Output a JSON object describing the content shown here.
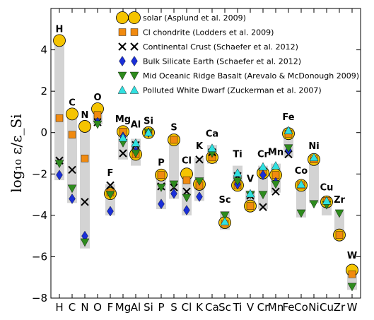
{
  "chart_data": {
    "type": "scatter",
    "ylabel": "log₁₀ ε/ε_Si",
    "ylim": [
      -8,
      6
    ],
    "yticks": [
      -8,
      -6,
      -4,
      -2,
      0,
      2,
      4
    ],
    "categories": [
      "H",
      "C",
      "N",
      "O",
      "F",
      "Mg",
      "Al",
      "Si",
      "P",
      "S",
      "Cl",
      "K",
      "Ca",
      "Sc",
      "Ti",
      "V",
      "Cr",
      "Mn",
      "Fe",
      "Co",
      "Ni",
      "Cu",
      "Zr",
      "W"
    ],
    "ranges": [
      {
        "element": "H",
        "low": -2.3,
        "high": 4.4
      },
      {
        "element": "C",
        "low": -3.4,
        "high": 0.9
      },
      {
        "element": "N",
        "low": -5.6,
        "high": 0.3
      },
      {
        "element": "O",
        "low": 0.4,
        "high": 1.1
      },
      {
        "element": "F",
        "low": -4.0,
        "high": -2.5
      },
      {
        "element": "Mg",
        "low": -1.3,
        "high": 0.1
      },
      {
        "element": "Al",
        "low": -1.6,
        "high": -0.3
      },
      {
        "element": "Si",
        "low": -0.2,
        "high": 0.1
      },
      {
        "element": "P",
        "low": -3.7,
        "high": -2.0
      },
      {
        "element": "S",
        "low": -3.2,
        "high": -0.3
      },
      {
        "element": "Cl",
        "low": -4.0,
        "high": -1.9
      },
      {
        "element": "K",
        "low": -3.3,
        "high": -1.2
      },
      {
        "element": "Ca",
        "low": -1.5,
        "high": -0.6
      },
      {
        "element": "Sc",
        "low": -4.7,
        "high": -3.8
      },
      {
        "element": "Ti",
        "low": -2.7,
        "high": -1.6
      },
      {
        "element": "V",
        "low": -3.7,
        "high": -2.8
      },
      {
        "element": "Cr",
        "low": -3.7,
        "high": -1.6
      },
      {
        "element": "Mn",
        "low": -2.9,
        "high": -1.5
      },
      {
        "element": "Fe",
        "low": -1.2,
        "high": 0.2
      },
      {
        "element": "Co",
        "low": -4.1,
        "high": -2.4
      },
      {
        "element": "Ni",
        "low": -3.4,
        "high": -1.2
      },
      {
        "element": "Cu",
        "low": -4.0,
        "high": -3.2
      },
      {
        "element": "Zr",
        "low": -5.1,
        "high": -3.8
      },
      {
        "element": "W",
        "low": -7.6,
        "high": -6.5
      }
    ],
    "series": [
      {
        "name": "solar (Asplund et al. 2009)",
        "marker": "circle",
        "color": "#f5c400",
        "points": [
          [
            "H",
            4.45
          ],
          [
            "C",
            0.9
          ],
          [
            "N",
            0.3
          ],
          [
            "O",
            1.15
          ],
          [
            "F",
            -2.95
          ],
          [
            "Mg",
            0.05
          ],
          [
            "Al",
            -1.05
          ],
          [
            "Si",
            0.0
          ],
          [
            "P",
            -2.05
          ],
          [
            "S",
            -0.35
          ],
          [
            "Cl",
            -2.0
          ],
          [
            "K",
            -2.5
          ],
          [
            "Ca",
            -1.2
          ],
          [
            "Sc",
            -4.35
          ],
          [
            "Ti",
            -2.55
          ],
          [
            "V",
            -3.55
          ],
          [
            "Cr",
            -1.95
          ],
          [
            "Mn",
            -2.05
          ],
          [
            "Fe",
            -0.05
          ],
          [
            "Co",
            -2.55
          ],
          [
            "Ni",
            -1.3
          ],
          [
            "Cu",
            -3.35
          ],
          [
            "Zr",
            -4.95
          ],
          [
            "W",
            -6.65
          ]
        ]
      },
      {
        "name": "CI chondrite (Lodders et al. 2009)",
        "marker": "square",
        "color": "#f08a10",
        "points": [
          [
            "H",
            0.7
          ],
          [
            "C",
            -0.1
          ],
          [
            "N",
            -1.25
          ],
          [
            "O",
            0.85
          ],
          [
            "F",
            -2.9
          ],
          [
            "Mg",
            0.05
          ],
          [
            "Al",
            -1.05
          ],
          [
            "Si",
            0.0
          ],
          [
            "P",
            -2.05
          ],
          [
            "S",
            -0.35
          ],
          [
            "Cl",
            -2.3
          ],
          [
            "K",
            -2.55
          ],
          [
            "Ca",
            -1.2
          ],
          [
            "Sc",
            -4.4
          ],
          [
            "Ti",
            -2.55
          ],
          [
            "V",
            -3.55
          ],
          [
            "Cr",
            -1.9
          ],
          [
            "Mn",
            -2.05
          ],
          [
            "Fe",
            -0.05
          ],
          [
            "Co",
            -2.55
          ],
          [
            "Ni",
            -1.3
          ],
          [
            "Cu",
            -3.3
          ],
          [
            "Zr",
            -4.95
          ],
          [
            "W",
            -6.85
          ]
        ]
      },
      {
        "name": "Continental Crust (Schaefer et al. 2012)",
        "marker": "x",
        "color": "#000000",
        "points": [
          [
            "H",
            -1.35
          ],
          [
            "C",
            -1.8
          ],
          [
            "N",
            -3.35
          ],
          [
            "O",
            0.5
          ],
          [
            "F",
            -2.55
          ],
          [
            "Mg",
            -1.0
          ],
          [
            "Al",
            -0.6
          ],
          [
            "Si",
            0.0
          ],
          [
            "P",
            -2.6
          ],
          [
            "S",
            -2.65
          ],
          [
            "Cl",
            -2.85
          ],
          [
            "K",
            -1.3
          ],
          [
            "Ca",
            -0.95
          ],
          [
            "Ti",
            -2.1
          ],
          [
            "V",
            -3.05
          ],
          [
            "Cr",
            -3.6
          ],
          [
            "Mn",
            -2.85
          ],
          [
            "Fe",
            -1.05
          ]
        ]
      },
      {
        "name": "Bulk Silicate Earth (Schaefer et al. 2012)",
        "marker": "diamond",
        "color": "#1a2fd8",
        "points": [
          [
            "H",
            -2.05
          ],
          [
            "C",
            -3.2
          ],
          [
            "N",
            -5.0
          ],
          [
            "O",
            0.5
          ],
          [
            "F",
            -3.8
          ],
          [
            "Mg",
            -0.2
          ],
          [
            "Al",
            -0.9
          ],
          [
            "Si",
            0.0
          ],
          [
            "P",
            -3.45
          ],
          [
            "S",
            -2.95
          ],
          [
            "Cl",
            -3.75
          ],
          [
            "K",
            -3.1
          ],
          [
            "Ca",
            -0.85
          ],
          [
            "Ti",
            -2.5
          ],
          [
            "Cr",
            -2.05
          ],
          [
            "Mn",
            -2.4
          ],
          [
            "Fe",
            -0.85
          ]
        ]
      },
      {
        "name": "Mid Oceanic Ridge Basalt (Arevalo & McDonough 2009)",
        "marker": "triangle-down",
        "color": "#2e8b1e",
        "points": [
          [
            "H",
            -1.5
          ],
          [
            "C",
            -2.7
          ],
          [
            "N",
            -5.3
          ],
          [
            "O",
            0.4
          ],
          [
            "F",
            -3.0
          ],
          [
            "Mg",
            -0.5
          ],
          [
            "Al",
            -1.0
          ],
          [
            "Si",
            0.0
          ],
          [
            "P",
            -2.65
          ],
          [
            "S",
            -2.5
          ],
          [
            "Cl",
            -3.15
          ],
          [
            "K",
            -2.35
          ],
          [
            "Ca",
            -1.0
          ],
          [
            "Sc",
            -4.0
          ],
          [
            "Ti",
            -2.35
          ],
          [
            "V",
            -3.0
          ],
          [
            "Cr",
            -3.0
          ],
          [
            "Mn",
            -2.5
          ],
          [
            "Fe",
            -0.75
          ],
          [
            "Co",
            -3.9
          ],
          [
            "Ni",
            -3.45
          ],
          [
            "Cu",
            -3.5
          ],
          [
            "Zr",
            -3.9
          ],
          [
            "W",
            -7.45
          ]
        ]
      },
      {
        "name": "Polluted White Dwarf (Zuckerman et al. 2007)",
        "marker": "triangle-up",
        "color": "#30e0e0",
        "points": [
          [
            "Mg",
            -0.25
          ],
          [
            "Al",
            -0.5
          ],
          [
            "Si",
            0.0
          ],
          [
            "Ca",
            -0.75
          ],
          [
            "Sc",
            -4.3
          ],
          [
            "Ti",
            -1.95
          ],
          [
            "V",
            -2.95
          ],
          [
            "Cr",
            -1.65
          ],
          [
            "Mn",
            -1.6
          ],
          [
            "Fe",
            0.1
          ],
          [
            "Co",
            -2.5
          ],
          [
            "Ni",
            -1.2
          ],
          [
            "Cu",
            -3.3
          ]
        ]
      }
    ]
  }
}
